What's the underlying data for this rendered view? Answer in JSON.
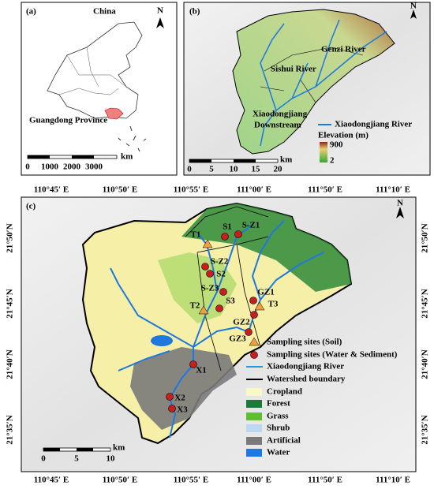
{
  "panel_a": {
    "label": "(a)",
    "country": "China",
    "province": "Guangdong Province",
    "north": "N",
    "scale": {
      "ticks": [
        0,
        1000,
        2000,
        3000
      ],
      "unit": "km"
    }
  },
  "panel_b": {
    "label": "(b)",
    "rivers": [
      "Genzi River",
      "Sishui River"
    ],
    "downstream": [
      "Xiaodongjiang",
      "Downstream"
    ],
    "legend": {
      "river": "Xiaodongjiang River",
      "elevation_title": "Elevation (m)",
      "elevation_max": "900",
      "elevation_min": "2"
    },
    "scale": {
      "ticks": [
        0,
        5,
        10,
        15,
        20
      ],
      "unit": "km"
    },
    "north": "N"
  },
  "panel_c": {
    "label": "(c)",
    "north": "N",
    "lon_labels": [
      "110°45′ E",
      "110°50′ E",
      "110°55′ E",
      "111°00′ E",
      "111°50′ E",
      "111°10′ E"
    ],
    "lat_labels": [
      "21°50′N",
      "21°45′N",
      "21°40′N",
      "21°35′N"
    ],
    "sites": [
      {
        "label": "T1",
        "kind": "soil"
      },
      {
        "label": "S1",
        "kind": "water"
      },
      {
        "label": "S-Z1",
        "kind": "water"
      },
      {
        "label": "S-Z2",
        "kind": "water"
      },
      {
        "label": "S2",
        "kind": "water"
      },
      {
        "label": "S-Z3",
        "kind": "water"
      },
      {
        "label": "S3",
        "kind": "water"
      },
      {
        "label": "T2",
        "kind": "soil"
      },
      {
        "label": "GZ1",
        "kind": "water"
      },
      {
        "label": "T3",
        "kind": "soil"
      },
      {
        "label": "GZ2",
        "kind": "water"
      },
      {
        "label": "GZ3",
        "kind": "water"
      },
      {
        "label": "X1",
        "kind": "water"
      },
      {
        "label": "X2",
        "kind": "water"
      },
      {
        "label": "X3",
        "kind": "water"
      }
    ],
    "legend": [
      "Sampling sites (Soil)",
      "Sampling sites (Water & Sediment)",
      "Xiaodongjiang River",
      "Watershed boundary",
      "Cropland",
      "Forest",
      "Grass",
      "Shrub",
      "Artificial",
      "Water"
    ],
    "scale": {
      "ticks": [
        0,
        5,
        10
      ],
      "unit": "km"
    }
  }
}
